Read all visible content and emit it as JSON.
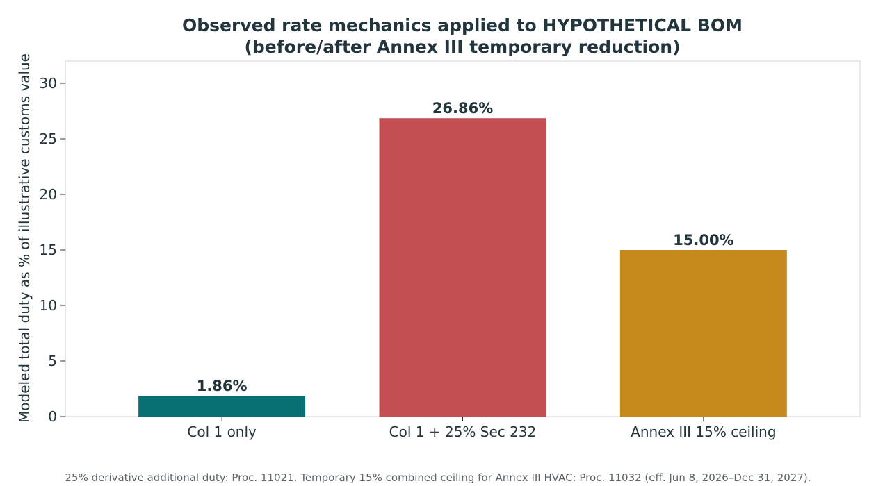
{
  "chart_data": {
    "type": "bar",
    "title_lines": [
      "Observed rate mechanics applied to HYPOTHETICAL BOM",
      "(before/after Annex III temporary reduction)"
    ],
    "ylabel": "Modeled total duty as % of illustrative customs value",
    "xlabel": "",
    "ylim": [
      0,
      32
    ],
    "yticks": [
      0,
      5,
      10,
      15,
      20,
      25,
      30
    ],
    "categories": [
      "Col 1 only",
      "Col 1 + 25% Sec 232",
      "Annex III 15% ceiling"
    ],
    "values": [
      1.86,
      26.86,
      15.0
    ],
    "value_labels": [
      "1.86%",
      "26.86%",
      "15.00%"
    ],
    "colors": [
      "#087073",
      "#c34f53",
      "#c48a1d"
    ],
    "grid": false,
    "footnote": "25% derivative additional duty: Proc. 11021. Temporary 15% combined ceiling for Annex III HVAC: Proc. 11032 (eff. Jun 8, 2026–Dec 31, 2027)."
  },
  "colors": {
    "text": "#22343c",
    "axis": "#d9dcdd",
    "footnote": "#5a6368"
  }
}
